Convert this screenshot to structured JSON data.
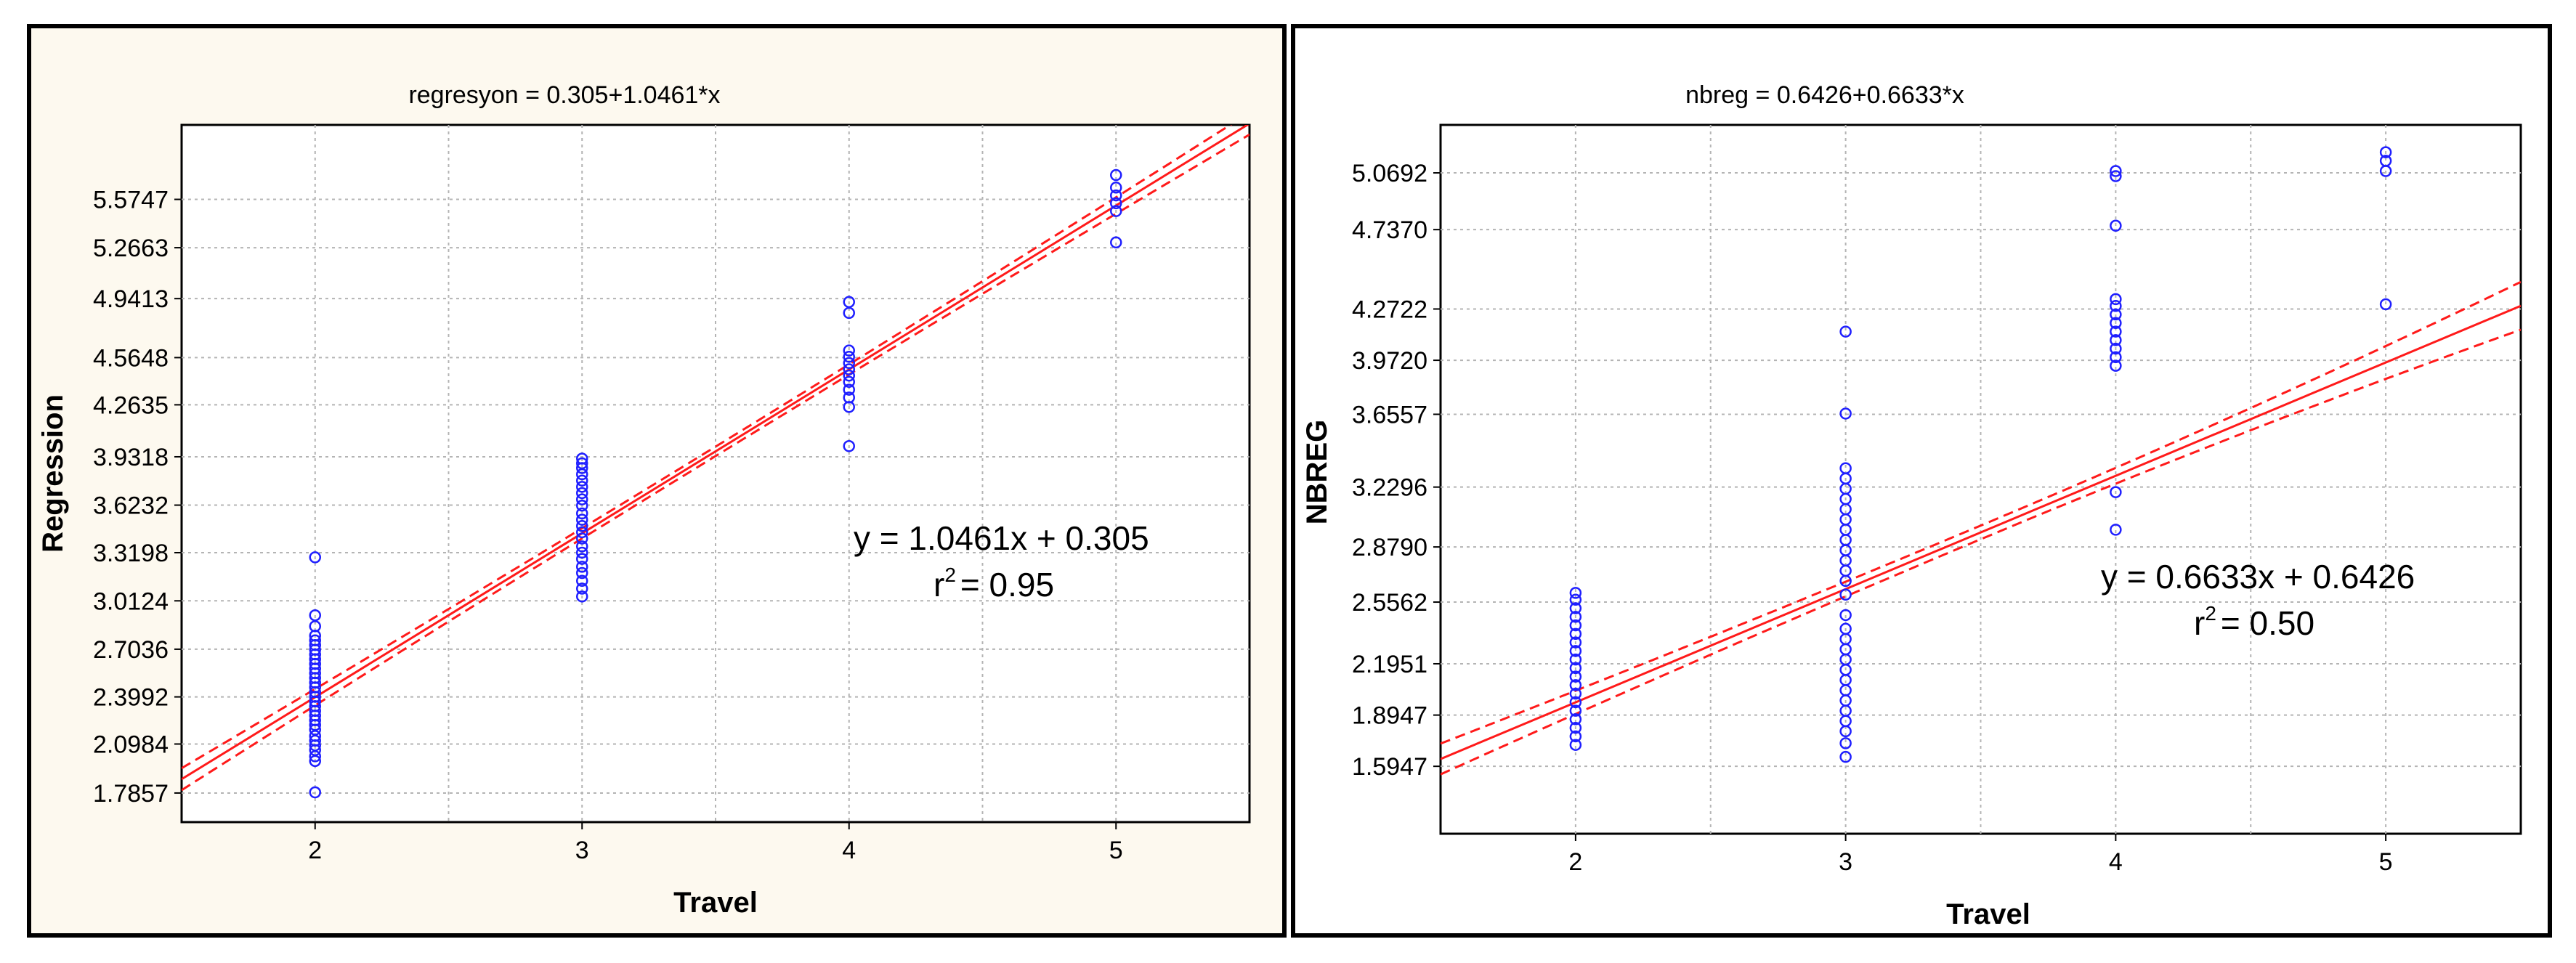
{
  "chart_data": [
    {
      "type": "scatter",
      "title": "regresyon = 0.305+1.0461*x",
      "xlabel": "Travel",
      "ylabel": "Regression",
      "xlim": [
        1.5,
        5.5
      ],
      "ylim": [
        1.6,
        6.05
      ],
      "xticks": [
        "2",
        "3",
        "4",
        "5"
      ],
      "xtick_values": [
        2,
        3,
        4,
        5
      ],
      "yticks": [
        "1.7857",
        "2.0984",
        "2.3992",
        "2.7036",
        "3.0124",
        "3.3198",
        "3.6232",
        "3.9318",
        "4.2635",
        "4.5648",
        "4.9413",
        "5.2663",
        "5.5747"
      ],
      "ytick_values": [
        1.7857,
        2.0984,
        2.3992,
        2.7036,
        3.0124,
        3.3198,
        3.6232,
        3.9318,
        4.2635,
        4.5648,
        4.9413,
        5.2663,
        5.5747
      ],
      "grid": true,
      "fit": {
        "slope": 1.0461,
        "intercept": 0.305,
        "ci_half": [
          0.07,
          0.03,
          0.07
        ]
      },
      "equation": "y = 1.0461x + 0.305",
      "r2_value": "= 0.95",
      "series": [
        {
          "name": "Travel 2",
          "x": 2,
          "y": [
            1.79,
            1.99,
            2.02,
            2.06,
            2.09,
            2.12,
            2.15,
            2.19,
            2.22,
            2.25,
            2.28,
            2.31,
            2.34,
            2.37,
            2.4,
            2.43,
            2.46,
            2.49,
            2.52,
            2.55,
            2.58,
            2.61,
            2.64,
            2.67,
            2.7,
            2.73,
            2.76,
            2.79,
            2.85,
            2.92,
            3.29
          ]
        },
        {
          "name": "Travel 3",
          "x": 3,
          "y": [
            3.04,
            3.09,
            3.14,
            3.19,
            3.23,
            3.28,
            3.32,
            3.36,
            3.41,
            3.45,
            3.49,
            3.53,
            3.57,
            3.62,
            3.66,
            3.7,
            3.74,
            3.78,
            3.82,
            3.86,
            3.89,
            3.92
          ]
        },
        {
          "name": "Travel 4",
          "x": 4,
          "y": [
            4.0,
            4.25,
            4.31,
            4.36,
            4.41,
            4.45,
            4.49,
            4.53,
            4.57,
            4.61,
            4.85,
            4.92
          ]
        },
        {
          "name": "Travel 5",
          "x": 5,
          "y": [
            5.3,
            5.5,
            5.55,
            5.6,
            5.65,
            5.73
          ]
        }
      ]
    },
    {
      "type": "scatter",
      "title": "nbreg = 0.6426+0.6633*x",
      "xlabel": "Travel",
      "ylabel": "NBREG",
      "xlim": [
        1.5,
        5.5
      ],
      "ylim": [
        1.2,
        5.35
      ],
      "xticks": [
        "2",
        "3",
        "4",
        "5"
      ],
      "xtick_values": [
        2,
        3,
        4,
        5
      ],
      "yticks": [
        "1.5947",
        "1.8947",
        "2.1951",
        "2.5562",
        "2.8790",
        "3.2296",
        "3.6557",
        "3.9720",
        "4.2722",
        "4.7370",
        "5.0692"
      ],
      "ytick_values": [
        1.5947,
        1.8947,
        2.1951,
        2.5562,
        2.879,
        3.2296,
        3.6557,
        3.972,
        4.2722,
        4.737,
        5.0692
      ],
      "grid": true,
      "fit": {
        "slope": 0.6633,
        "intercept": 0.6426,
        "ci_half": [
          0.09,
          0.04,
          0.14
        ]
      },
      "equation": "y = 0.6633x + 0.6426",
      "r2_value": "= 0.50",
      "series": [
        {
          "name": "Travel 2",
          "x": 2,
          "y": [
            1.72,
            1.77,
            1.82,
            1.87,
            1.92,
            1.97,
            2.02,
            2.07,
            2.12,
            2.17,
            2.22,
            2.27,
            2.32,
            2.37,
            2.42,
            2.47,
            2.52,
            2.57,
            2.61
          ]
        },
        {
          "name": "Travel 3",
          "x": 3,
          "y": [
            1.65,
            1.73,
            1.8,
            1.86,
            1.92,
            1.98,
            2.04,
            2.1,
            2.16,
            2.22,
            2.28,
            2.34,
            2.4,
            2.48,
            2.6,
            2.68,
            2.74,
            2.8,
            2.86,
            2.92,
            2.98,
            3.04,
            3.1,
            3.16,
            3.22,
            3.28,
            3.34,
            3.66,
            4.14
          ]
        },
        {
          "name": "Travel 4",
          "x": 4,
          "y": [
            2.98,
            3.2,
            3.94,
            3.99,
            4.04,
            4.09,
            4.14,
            4.19,
            4.24,
            4.29,
            4.33,
            4.76,
            5.05,
            5.08
          ]
        },
        {
          "name": "Travel 5",
          "x": 5,
          "y": [
            4.3,
            5.08,
            5.14,
            5.19
          ]
        }
      ]
    }
  ]
}
